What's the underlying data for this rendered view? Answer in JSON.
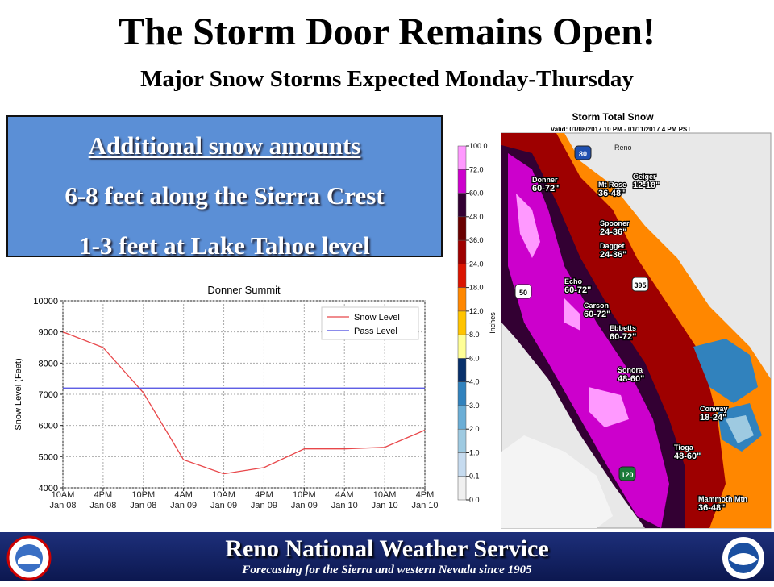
{
  "header": {
    "title": "The Storm Door Remains Open!",
    "subtitle": "Major Snow Storms Expected Monday-Thursday"
  },
  "callout": {
    "heading": "Additional snow amounts",
    "lines": [
      "6-8 feet along the Sierra Crest",
      "1-3 feet at Lake Tahoe level"
    ]
  },
  "chart_data": {
    "type": "line",
    "title": "Donner Summit",
    "y_label": "Snow Level (Feet)",
    "categories": [
      "10AM\nJan 08",
      "4PM\nJan 08",
      "10PM\nJan 08",
      "4AM\nJan 09",
      "10AM\nJan 09",
      "4PM\nJan 09",
      "10PM\nJan 09",
      "4AM\nJan 10",
      "10AM\nJan 10",
      "4PM\nJan 10"
    ],
    "series": [
      {
        "name": "Snow Level",
        "color": "#e8474a",
        "values": [
          9000,
          8500,
          7050,
          4900,
          4450,
          4650,
          5250,
          5250,
          5300,
          5850
        ]
      },
      {
        "name": "Pass Level",
        "color": "#4848e0",
        "values": [
          7200,
          7200,
          7200,
          7200,
          7200,
          7200,
          7200,
          7200,
          7200,
          7200
        ]
      }
    ],
    "ylim": [
      4000,
      10000
    ],
    "yticks": [
      4000,
      5000,
      6000,
      7000,
      8000,
      9000,
      10000
    ],
    "grid": true,
    "legend": "upper right"
  },
  "map": {
    "title": "Storm Total Snow",
    "subtitle": "Valid: 01/08/2017 10 PM - 01/11/2017 4 PM PST",
    "city": "Reno",
    "colorbar": {
      "unit": "Inches",
      "ticks": [
        {
          "value": 0,
          "label": "0.0"
        },
        {
          "value": 0.1,
          "label": "0.1"
        },
        {
          "value": 1,
          "label": "1.0"
        },
        {
          "value": 2,
          "label": "2.0"
        },
        {
          "value": 3,
          "label": "3.0"
        },
        {
          "value": 4,
          "label": "4.0"
        },
        {
          "value": 6,
          "label": "6.0"
        },
        {
          "value": 8,
          "label": "8.0"
        },
        {
          "value": 12,
          "label": "12.0"
        },
        {
          "value": 18,
          "label": "18.0"
        },
        {
          "value": 24,
          "label": "24.0"
        },
        {
          "value": 36,
          "label": "36.0"
        },
        {
          "value": 48,
          "label": "48.0"
        },
        {
          "value": 60,
          "label": "60.0"
        },
        {
          "value": 72,
          "label": "72.0"
        },
        {
          "value": 100,
          "label": "100.0"
        }
      ],
      "colors": [
        "#f0f0f0",
        "#c6dbef",
        "#9ecae1",
        "#6baed6",
        "#3182bd",
        "#08306b",
        "#ffff96",
        "#ffc400",
        "#ff8700",
        "#db1400",
        "#9e0000",
        "#690000",
        "#330033",
        "#cc00cc",
        "#ff99ff"
      ]
    },
    "locations": [
      {
        "name": "Donner",
        "amount": "60-72\""
      },
      {
        "name": "Mt Rose",
        "amount": "36-48\""
      },
      {
        "name": "Geiger",
        "amount": "12-18\""
      },
      {
        "name": "Spooner",
        "amount": "24-36\""
      },
      {
        "name": "Dagget",
        "amount": "24-36\""
      },
      {
        "name": "Echo",
        "amount": "60-72\""
      },
      {
        "name": "Carson",
        "amount": "60-72\""
      },
      {
        "name": "Ebbetts",
        "amount": "60-72\""
      },
      {
        "name": "Sonora",
        "amount": "48-60\""
      },
      {
        "name": "Conway",
        "amount": "18-24\""
      },
      {
        "name": "Tioga",
        "amount": "48-60\""
      },
      {
        "name": "Mammoth Mtn",
        "amount": "36-48\""
      }
    ],
    "shields": [
      "80",
      "50",
      "395",
      "120"
    ]
  },
  "footer": {
    "title": "Reno National Weather Service",
    "subtitle": "Forecasting for the Sierra and western Nevada since 1905"
  }
}
